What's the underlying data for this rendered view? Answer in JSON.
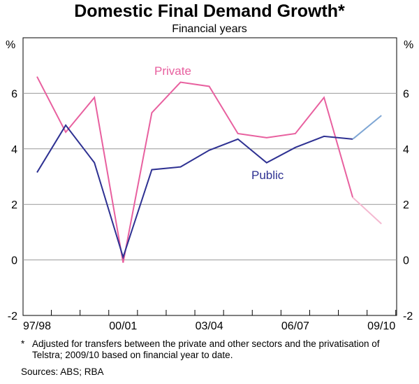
{
  "chart_data": {
    "type": "line",
    "title": "Domestic Final Demand Growth*",
    "subtitle": "Financial years",
    "ylabel_left": "%",
    "ylabel_right": "%",
    "ylim": [
      -2,
      8
    ],
    "yticks": [
      -2,
      0,
      2,
      4,
      6
    ],
    "ytick_labels": [
      "-2",
      "0",
      "2",
      "4",
      "6"
    ],
    "x": [
      "1997/98",
      "1998/99",
      "1999/00",
      "2000/01",
      "2001/02",
      "2002/03",
      "2003/04",
      "2004/05",
      "2005/06",
      "2006/07",
      "2007/08",
      "2008/09",
      "2009/10"
    ],
    "xtick_labels": [
      "97/98",
      "00/01",
      "03/04",
      "06/07",
      "09/10"
    ],
    "xtick_positions": [
      0,
      3,
      6,
      9,
      12
    ],
    "series": [
      {
        "name": "Private",
        "color": "#e8609f",
        "estimate_color": "#f4b8d0",
        "values": [
          6.6,
          4.6,
          5.85,
          -0.1,
          5.3,
          6.4,
          6.25,
          4.55,
          4.4,
          4.55,
          5.85,
          2.25,
          1.3
        ]
      },
      {
        "name": "Public",
        "color": "#2e3192",
        "estimate_color": "#7ea6d4",
        "values": [
          3.15,
          4.85,
          3.5,
          0.1,
          3.25,
          3.35,
          3.95,
          4.35,
          3.5,
          4.05,
          4.45,
          4.35,
          5.2
        ]
      }
    ],
    "estimate_from_index": 11,
    "annotations": [
      "Private",
      "Public"
    ]
  },
  "footnote": {
    "marker": "*",
    "text": "Adjusted for transfers between the private and other sectors and the privatisation of Telstra; 2009/10 based on financial year to date."
  },
  "sources": "Sources: ABS; RBA"
}
